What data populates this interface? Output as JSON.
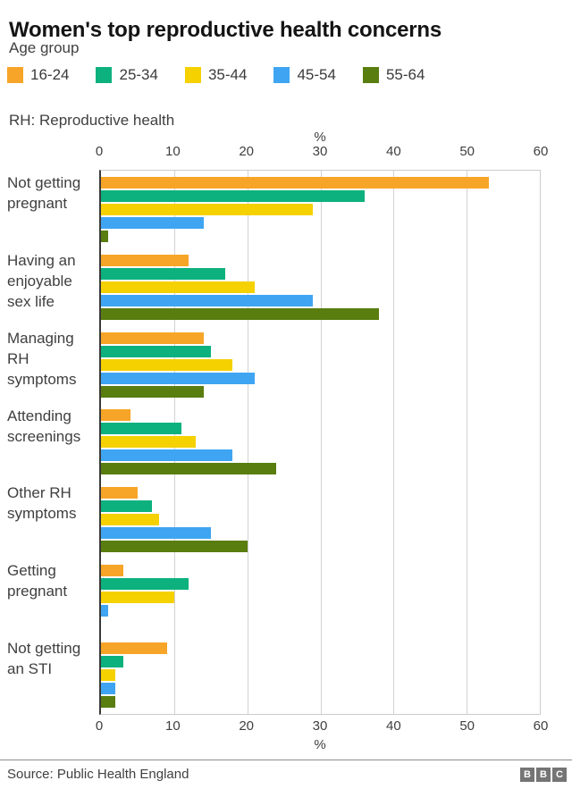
{
  "header": {
    "title": "Women's top reproductive health concerns",
    "legend_title": "Age group",
    "note": "RH: Reproductive health"
  },
  "chart_data": {
    "type": "bar",
    "orientation": "horizontal",
    "title": "Women's top reproductive health concerns",
    "legend_title": "Age group",
    "note": "RH: Reproductive health",
    "xlabel": "%",
    "xlim": [
      0,
      60
    ],
    "ticks": [
      0,
      10,
      20,
      30,
      40,
      50,
      60
    ],
    "grid": true,
    "legend_position": "top",
    "categories": [
      "Not getting pregnant",
      "Having an enjoyable sex life",
      "Managing RH symptoms",
      "Attending screenings",
      "Other RH symptoms",
      "Getting pregnant",
      "Not getting an STI"
    ],
    "categories_display": [
      "Not getting\npregnant",
      "Having an\nenjoyable\nsex life",
      "Managing\nRH\nsymptoms",
      "Attending\nscreenings",
      "Other RH\nsymptoms",
      "Getting\npregnant",
      "Not getting\nan STI"
    ],
    "series": [
      {
        "name": "16-24",
        "color": "#F7A528",
        "values": [
          53,
          12,
          14,
          4,
          5,
          3,
          9
        ]
      },
      {
        "name": "25-34",
        "color": "#0DB17E",
        "values": [
          36,
          17,
          15,
          11,
          7,
          12,
          3
        ]
      },
      {
        "name": "35-44",
        "color": "#F5D100",
        "values": [
          29,
          21,
          18,
          13,
          8,
          10,
          2
        ]
      },
      {
        "name": "45-54",
        "color": "#3FA5F2",
        "values": [
          14,
          29,
          21,
          18,
          15,
          1,
          2
        ]
      },
      {
        "name": "55-64",
        "color": "#597D0E",
        "values": [
          1,
          38,
          14,
          24,
          20,
          0,
          2
        ]
      }
    ]
  },
  "footer": {
    "source": "Source: Public Health England",
    "logo_letters": [
      "B",
      "B",
      "C"
    ]
  }
}
